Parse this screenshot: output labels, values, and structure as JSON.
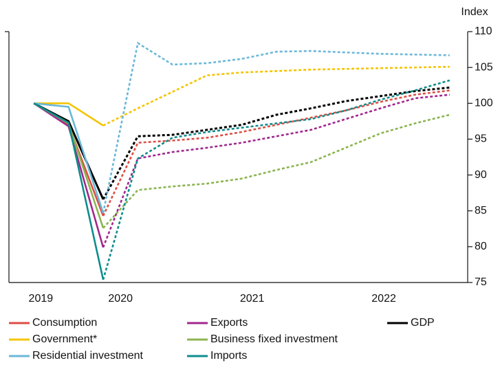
{
  "chart_data": {
    "type": "line",
    "y_label": "Index",
    "x": [
      0,
      1,
      2,
      3,
      4,
      5,
      6,
      7,
      8,
      9,
      10,
      11,
      12
    ],
    "xlim": [
      -0.72,
      12.52
    ],
    "xticks": [
      {
        "value": 0.2,
        "label": "2019"
      },
      {
        "value": 2.5,
        "label": "2020"
      },
      {
        "value": 6.3,
        "label": "2021"
      },
      {
        "value": 10.1,
        "label": "2022"
      }
    ],
    "ylim": [
      75,
      110
    ],
    "yticks": [
      75,
      80,
      85,
      90,
      95,
      100,
      105,
      110
    ],
    "forecast_start": 2,
    "series": [
      {
        "name": "Consumption",
        "color": "#dc4e44",
        "values": [
          100,
          97,
          84.3,
          94.5,
          94.8,
          95.2,
          96,
          97,
          98,
          99,
          100.2,
          101.2,
          101.8
        ]
      },
      {
        "name": "Exports",
        "color": "#a0278e",
        "values": [
          100,
          96.8,
          79.9,
          92.3,
          93.2,
          93.8,
          94.5,
          95.4,
          96.3,
          97.8,
          99.3,
          100.7,
          101.2
        ]
      },
      {
        "name": "GDP",
        "color": "#000000",
        "values": [
          100,
          97.5,
          86.6,
          95.4,
          95.6,
          96.3,
          97,
          98.4,
          99.3,
          100.3,
          101,
          101.7,
          102.2
        ]
      },
      {
        "name": "Government*",
        "color": "#f5c400",
        "values": [
          100,
          100,
          96.9,
          99.3,
          101.6,
          103.9,
          104.3,
          104.5,
          104.7,
          104.8,
          104.9,
          105,
          105.1
        ]
      },
      {
        "name": "Business fixed investment",
        "color": "#8bb44f",
        "values": [
          100,
          97.2,
          82.6,
          87.9,
          88.4,
          88.8,
          89.5,
          90.7,
          91.8,
          93.8,
          95.8,
          97.2,
          98.4
        ]
      },
      {
        "name": "Residential investment",
        "color": "#6bb8d9",
        "values": [
          100,
          99.5,
          84.7,
          108.4,
          105.4,
          105.6,
          106.2,
          107.2,
          107.3,
          107.1,
          106.9,
          106.8,
          106.7
        ]
      },
      {
        "name": "Imports",
        "color": "#0f8c8c",
        "values": [
          100,
          97.3,
          75.4,
          92.3,
          95.2,
          96,
          96.6,
          97.2,
          97.8,
          99,
          100.5,
          101.8,
          103.2
        ]
      }
    ]
  }
}
